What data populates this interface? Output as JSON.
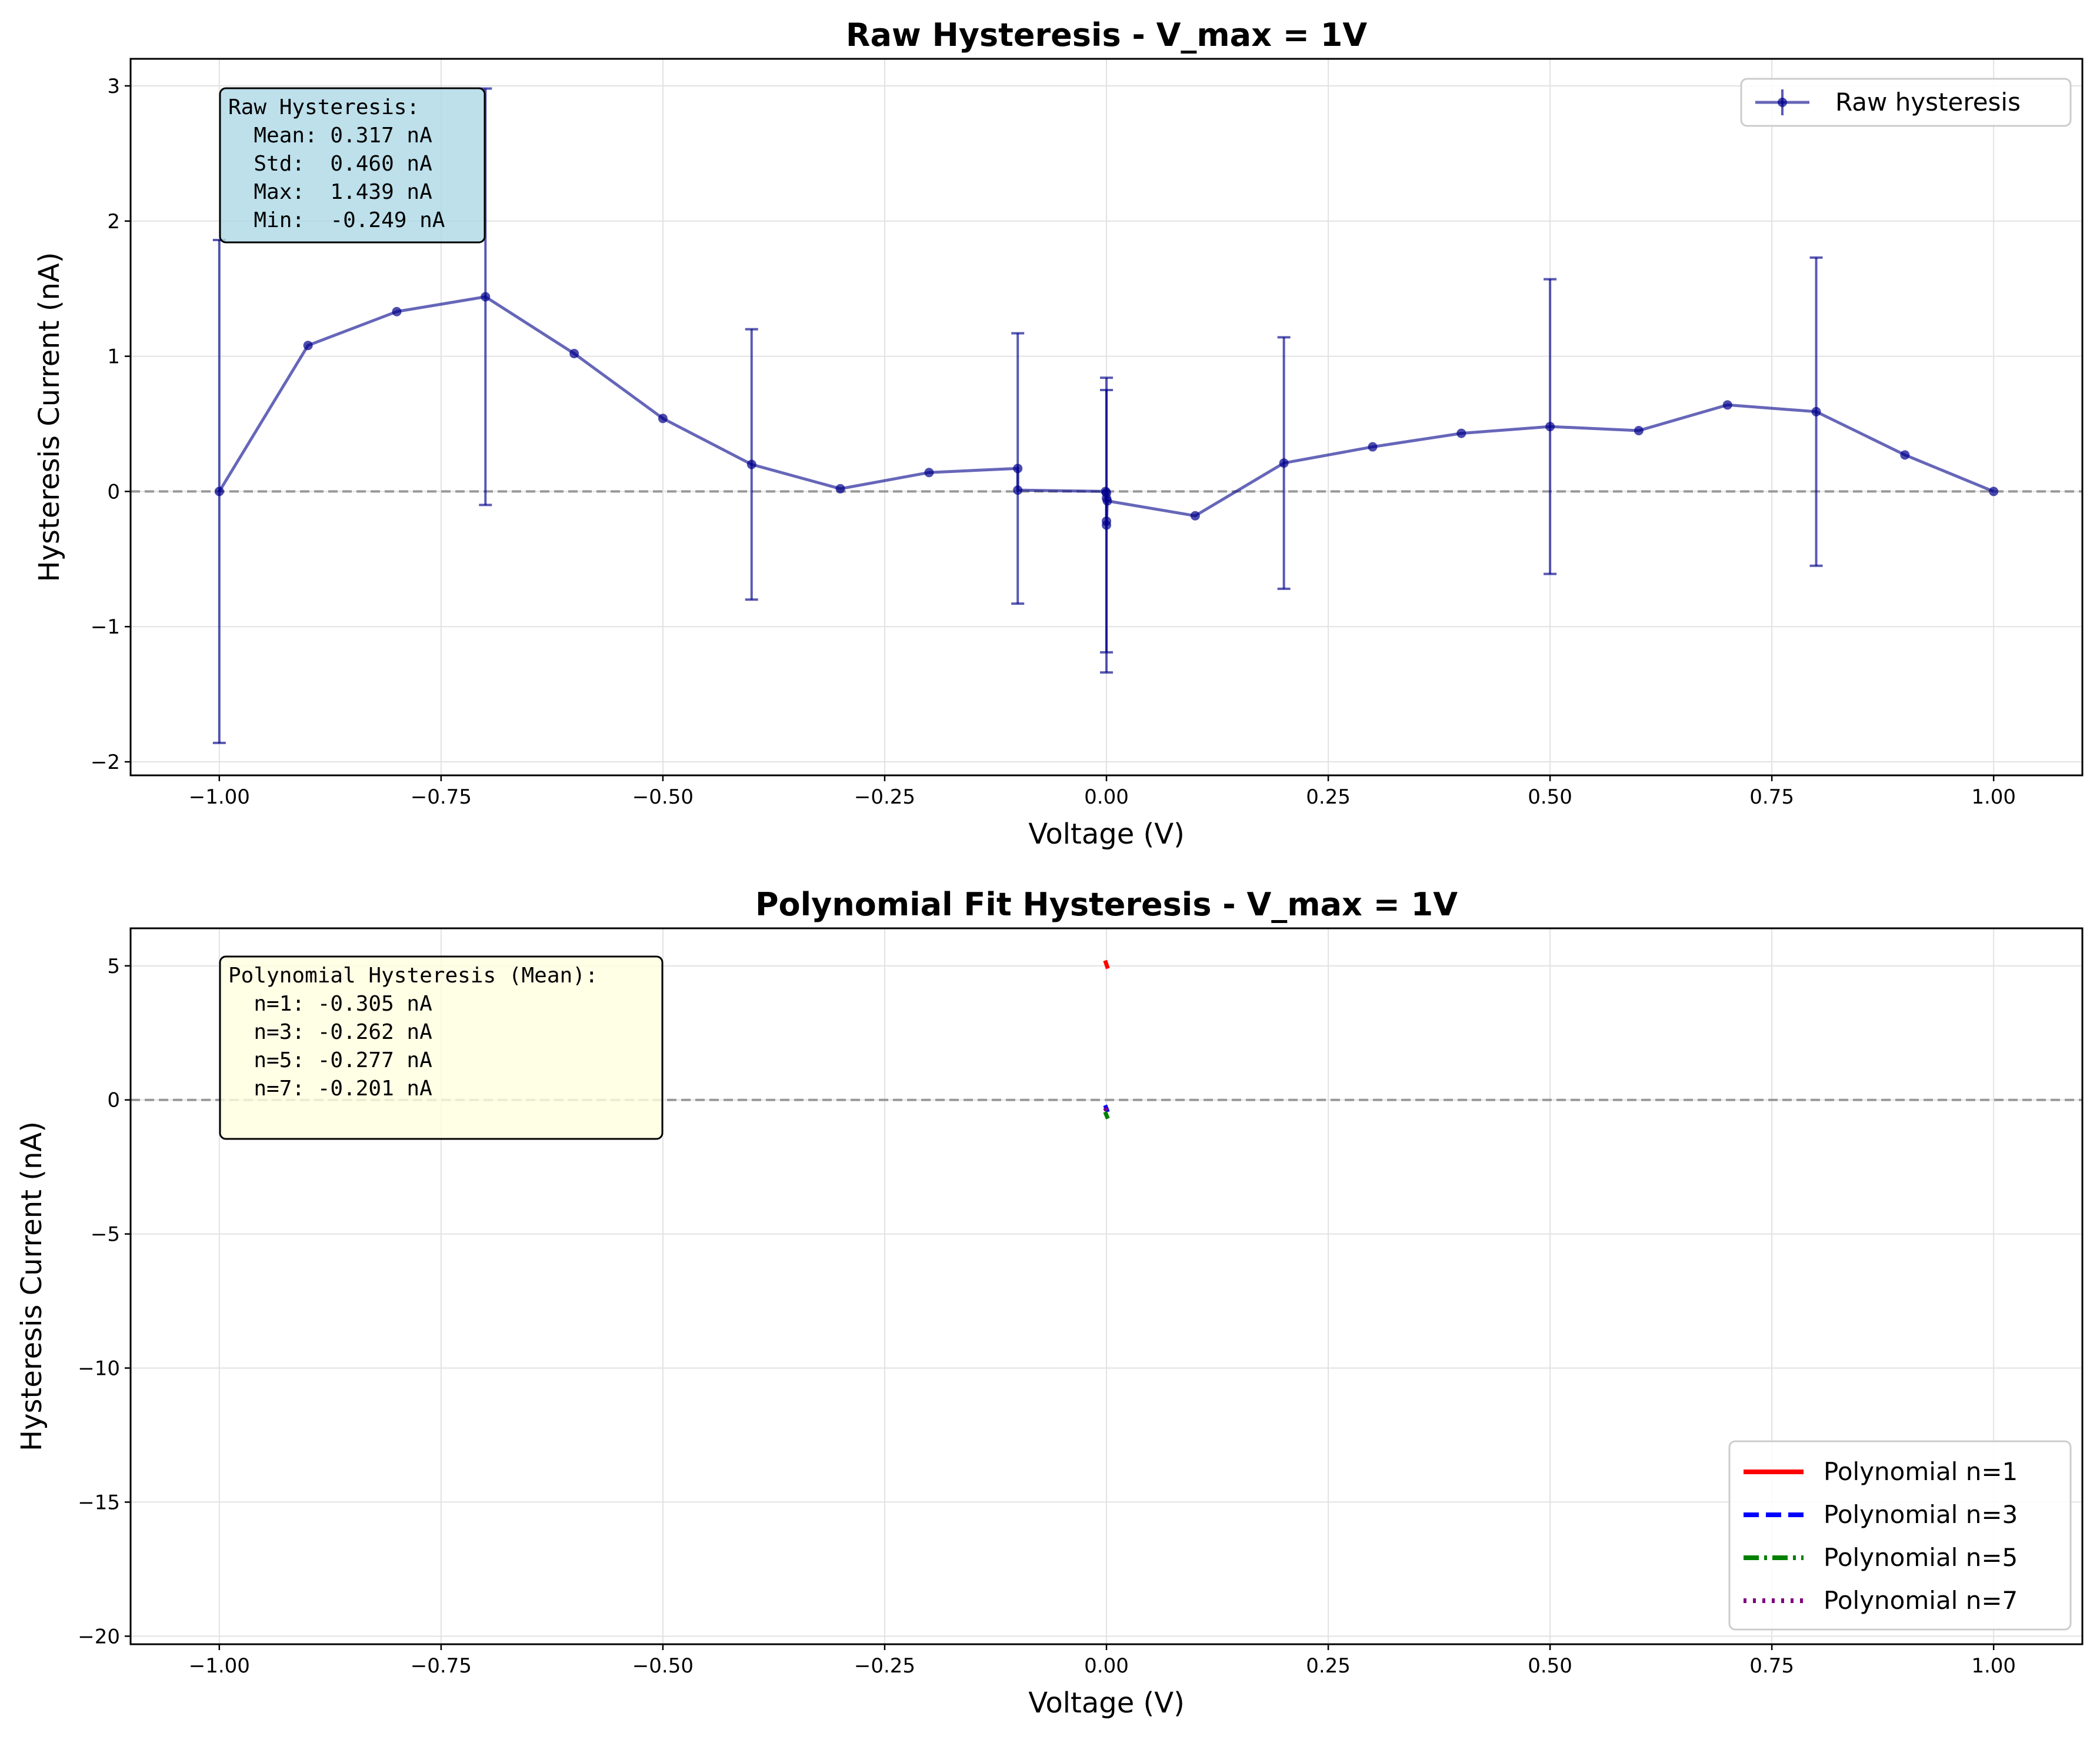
{
  "chart_data": [
    {
      "type": "line",
      "title": "Raw Hysteresis - V_max = 1V",
      "xlabel": "Voltage (V)",
      "ylabel": "Hysteresis Current (nA)",
      "xlim": [
        -1.1,
        1.1
      ],
      "ylim": [
        -2.1,
        3.2
      ],
      "xticks": [
        -1.0,
        -0.75,
        -0.5,
        -0.25,
        0.0,
        0.25,
        0.5,
        0.75,
        1.0
      ],
      "xtick_labels": [
        "−1.00",
        "−0.75",
        "−0.50",
        "−0.25",
        "0.00",
        "0.25",
        "0.50",
        "0.75",
        "1.00"
      ],
      "yticks": [
        -2,
        -1,
        0,
        1,
        2,
        3
      ],
      "ytick_labels": [
        "−2",
        "−1",
        "0",
        "1",
        "2",
        "3"
      ],
      "grid": true,
      "reference_line_y": 0,
      "legend": {
        "position": "top-right",
        "entries": [
          "Raw hysteresis"
        ]
      },
      "series": [
        {
          "name": "Raw hysteresis",
          "color": "#00008b",
          "x": [
            -1.0,
            -0.9,
            -0.8,
            -0.7,
            -0.6,
            -0.5,
            -0.4,
            -0.3,
            -0.2,
            -0.1,
            -0.1,
            -0.001,
            0.0,
            0.0,
            0.0,
            0.0,
            0.001,
            0.1,
            0.2,
            0.3,
            0.4,
            0.5,
            0.6,
            0.7,
            0.8,
            0.9,
            1.0
          ],
          "y": [
            0.0,
            1.08,
            1.33,
            1.44,
            1.02,
            0.54,
            0.2,
            0.02,
            0.14,
            0.17,
            0.01,
            0.0,
            -0.01,
            -0.05,
            -0.22,
            -0.249,
            -0.07,
            -0.18,
            0.21,
            0.33,
            0.43,
            0.48,
            0.45,
            0.64,
            0.59,
            0.27,
            0.0
          ],
          "error_bars": [
            {
              "x": -1.0,
              "y": 0.0,
              "err": 1.86
            },
            {
              "x": -0.7,
              "y": 1.44,
              "err": 1.54
            },
            {
              "x": -0.4,
              "y": 0.2,
              "err": 1.0
            },
            {
              "x": -0.1,
              "y": 0.17,
              "err": 1.0
            },
            {
              "x": 0.0,
              "y": -0.22,
              "err": 0.97
            },
            {
              "x": 0.0,
              "y": -0.249,
              "err": 1.09
            },
            {
              "x": 0.2,
              "y": 0.21,
              "err": 0.93
            },
            {
              "x": 0.5,
              "y": 0.48,
              "err": 1.09
            },
            {
              "x": 0.8,
              "y": 0.59,
              "err": 1.14
            }
          ]
        }
      ],
      "annotation": {
        "lines": [
          "Raw Hysteresis:",
          "  Mean: 0.317 nA",
          "  Std:  0.460 nA",
          "  Max:  1.439 nA",
          "  Min:  -0.249 nA"
        ],
        "background": "#add8e6"
      }
    },
    {
      "type": "line",
      "title": "Polynomial Fit Hysteresis - V_max = 1V",
      "xlabel": "Voltage (V)",
      "ylabel": "Hysteresis Current (nA)",
      "xlim": [
        -1.1,
        1.1
      ],
      "ylim": [
        -20.3,
        6.4
      ],
      "xticks": [
        -1.0,
        -0.75,
        -0.5,
        -0.25,
        0.0,
        0.25,
        0.5,
        0.75,
        1.0
      ],
      "xtick_labels": [
        "−1.00",
        "−0.75",
        "−0.50",
        "−0.25",
        "0.00",
        "0.25",
        "0.50",
        "0.75",
        "1.00"
      ],
      "yticks": [
        -20,
        -15,
        -10,
        -5,
        0,
        5
      ],
      "ytick_labels": [
        "−20",
        "−15",
        "−10",
        "−5",
        "0",
        "5"
      ],
      "grid": true,
      "reference_line_y": 0,
      "legend": {
        "position": "bottom-right",
        "entries": [
          "Polynomial n=1",
          "Polynomial n=3",
          "Polynomial n=5",
          "Polynomial n=7"
        ]
      },
      "series": [
        {
          "name": "Polynomial n=1",
          "color": "#ff0000",
          "dash": "solid",
          "x": [
            -0.0015,
            0.0015
          ],
          "y": [
            5.2,
            4.9
          ]
        },
        {
          "name": "Polynomial n=3",
          "color": "#0000ff",
          "dash": "dashed",
          "x": [
            -0.0015,
            0.0015
          ],
          "y": [
            -0.2,
            -0.45
          ]
        },
        {
          "name": "Polynomial n=5",
          "color": "#008000",
          "dash": "dashdot",
          "x": [
            -0.0015,
            0.0015
          ],
          "y": [
            -0.45,
            -0.7
          ]
        },
        {
          "name": "Polynomial n=7",
          "color": "#800080",
          "dash": "dotted",
          "x": [
            -0.0015,
            0.0015
          ],
          "y": [
            -0.3,
            -0.55
          ]
        }
      ],
      "annotation": {
        "lines": [
          "Polynomial Hysteresis (Mean):",
          "  n=1: -0.305 nA",
          "  n=3: -0.262 nA",
          "  n=5: -0.277 nA",
          "  n=7: -0.201 nA"
        ],
        "background": "#ffffe0"
      }
    }
  ]
}
